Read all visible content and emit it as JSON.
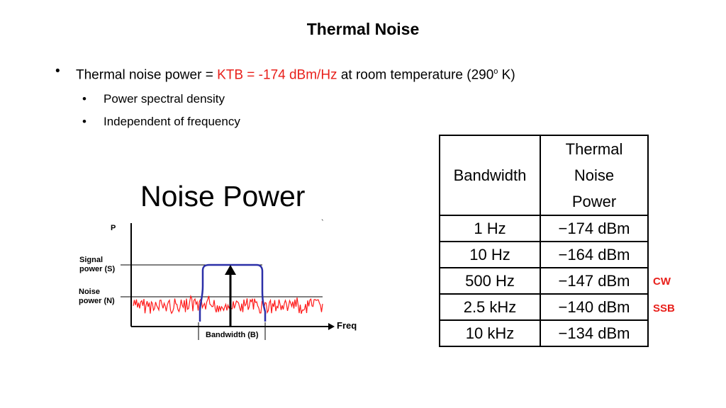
{
  "slide": {
    "title": "Thermal Noise",
    "bullet1": {
      "prefix": "Thermal noise power = ",
      "highlight": "KTB = -174 dBm/Hz",
      "suffix_before_sup": " at room temperature (290",
      "superscript": "o",
      "suffix_end": " K)"
    },
    "sub_bullets": [
      "Power spectral density",
      "Independent of frequency"
    ]
  },
  "figure": {
    "title": "Noise Power",
    "y_axis_label": "P",
    "x_axis_label": "Freq",
    "signal_label_line1": "Signal",
    "signal_label_line2": "power (S)",
    "noise_label_line1": "Noise",
    "noise_label_line2": "power (N)",
    "bandwidth_label": "Bandwidth (B)",
    "stray_mark": "`",
    "noise_color": "#ff1a1a",
    "filter_color": "#2b2fa8"
  },
  "table": {
    "headers": {
      "bandwidth": "Bandwidth",
      "power_line1": "Thermal",
      "power_line2": "Noise",
      "power_line3": "Power"
    },
    "rows": [
      {
        "bandwidth": "1 Hz",
        "power": "−174 dBm",
        "tag": ""
      },
      {
        "bandwidth": "10 Hz",
        "power": "−164 dBm",
        "tag": ""
      },
      {
        "bandwidth": "500 Hz",
        "power": "−147 dBm",
        "tag": "CW"
      },
      {
        "bandwidth": "2.5 kHz",
        "power": "−140 dBm",
        "tag": "SSB"
      },
      {
        "bandwidth": "10 kHz",
        "power": "−134 dBm",
        "tag": ""
      }
    ]
  }
}
